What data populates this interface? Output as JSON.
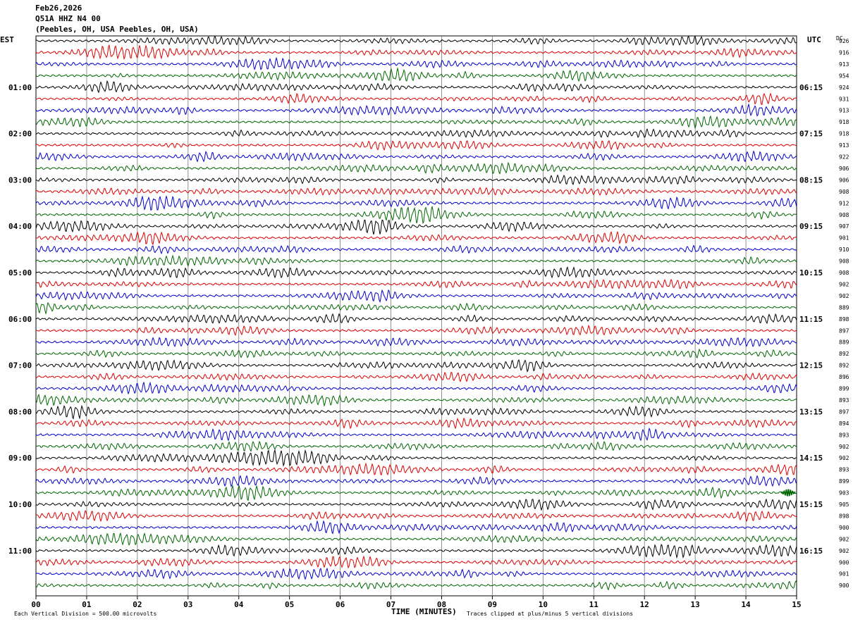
{
  "header": {
    "date": "Feb26,2026",
    "station": "Q51A HHZ N4 00",
    "location": "(Peebles, OH, USA Peebles, OH, USA)"
  },
  "left_tz": "EST",
  "right_tz": "UTC",
  "dc_label": "DC",
  "footer": {
    "scale_note": "Each Vertical Division =  500.00 microvolts",
    "xlabel": "TIME (MINUTES)",
    "clip_note": "Traces clipped at plus/minus 5 vertical divisions"
  },
  "colors": [
    "#000000",
    "#dd0000",
    "#0000cc",
    "#006600"
  ],
  "chart_data": {
    "type": "line",
    "title": "",
    "xlabel": "TIME (MINUTES)",
    "xlim": [
      0,
      15
    ],
    "x_ticks": [
      "00",
      "01",
      "02",
      "03",
      "04",
      "05",
      "06",
      "07",
      "08",
      "09",
      "10",
      "11",
      "12",
      "13",
      "14",
      "15"
    ],
    "row_count": 48,
    "hour_labels": [
      {
        "row": 4,
        "est": "01:00",
        "utc": "06:15"
      },
      {
        "row": 8,
        "est": "02:00",
        "utc": "07:15"
      },
      {
        "row": 12,
        "est": "03:00",
        "utc": "08:15"
      },
      {
        "row": 16,
        "est": "04:00",
        "utc": "09:15"
      },
      {
        "row": 20,
        "est": "05:00",
        "utc": "10:15"
      },
      {
        "row": 24,
        "est": "06:00",
        "utc": "11:15"
      },
      {
        "row": 28,
        "est": "07:00",
        "utc": "12:15"
      },
      {
        "row": 32,
        "est": "08:00",
        "utc": "13:15"
      },
      {
        "row": 36,
        "est": "09:00",
        "utc": "14:15"
      },
      {
        "row": 40,
        "est": "10:00",
        "utc": "15:15"
      },
      {
        "row": 44,
        "est": "11:00",
        "utc": "16:15"
      }
    ],
    "dc_offsets": [
      "926",
      "916",
      "913",
      "954",
      "924",
      "931",
      "913",
      "918",
      "918",
      "913",
      "922",
      "906",
      "906",
      "908",
      "912",
      "908",
      "907",
      "901",
      "910",
      "908",
      "908",
      "902",
      "902",
      "889",
      "898",
      "897",
      "889",
      "892",
      "892",
      "896",
      "899",
      "893",
      "897",
      "894",
      "893",
      "902",
      "902",
      "893",
      "899",
      "903",
      "905",
      "898",
      "900",
      "902",
      "902",
      "900",
      "901",
      "900"
    ]
  }
}
